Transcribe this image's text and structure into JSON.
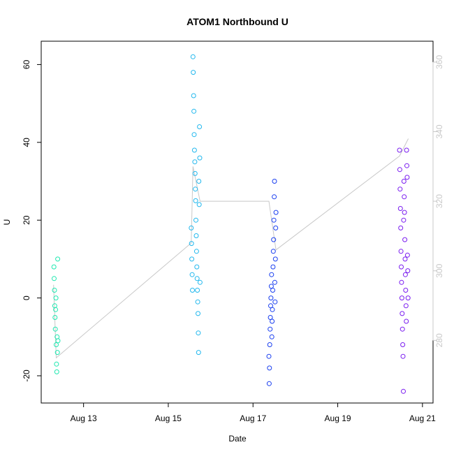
{
  "chart_data": {
    "type": "scatter",
    "title": "ATOM1 Northbound U",
    "xlabel": "Date",
    "ylabel": "U",
    "x_ticks": [
      "Aug 13",
      "Aug 15",
      "Aug 17",
      "Aug 19",
      "Aug 21"
    ],
    "xlim": [
      "Aug 12 00:00",
      "Aug 21 06:00"
    ],
    "ylim": [
      -27,
      66
    ],
    "y_ticks": [
      -20,
      0,
      20,
      40,
      60
    ],
    "y2_ticks": [
      280,
      300,
      320,
      340,
      360
    ],
    "y2lim": [
      262,
      366
    ],
    "grid": false,
    "colors": {
      "cluster_aug12": "#1ee8b0",
      "cluster_aug15": "#22b8ee",
      "cluster_aug17": "#1a3ff0",
      "cluster_aug20": "#7a1cf0",
      "secondary_line": "#c8c8c8",
      "right_axis": "#c8c8c8"
    },
    "series": [
      {
        "marker": "open-circle",
        "color": "#1ee8b0",
        "points": [
          [
            "Aug 12 07:12",
            8
          ],
          [
            "Aug 12 07:20",
            5
          ],
          [
            "Aug 12 07:30",
            2
          ],
          [
            "Aug 12 07:40",
            -2
          ],
          [
            "Aug 12 07:50",
            -5
          ],
          [
            "Aug 12 08:00",
            -8
          ],
          [
            "Aug 12 08:10",
            -3
          ],
          [
            "Aug 12 08:20",
            0
          ],
          [
            "Aug 12 08:30",
            -12
          ],
          [
            "Aug 12 08:40",
            -17
          ],
          [
            "Aug 12 08:50",
            -19
          ],
          [
            "Aug 12 09:00",
            -10
          ],
          [
            "Aug 12 09:10",
            -14
          ],
          [
            "Aug 12 09:20",
            10
          ],
          [
            "Aug 12 09:30",
            -11
          ]
        ]
      },
      {
        "marker": "open-circle",
        "color": "#22b8ee",
        "points": [
          [
            "Aug 15 14:00",
            62
          ],
          [
            "Aug 15 14:10",
            58
          ],
          [
            "Aug 15 14:20",
            52
          ],
          [
            "Aug 15 14:30",
            48
          ],
          [
            "Aug 15 14:40",
            42
          ],
          [
            "Aug 15 14:50",
            38
          ],
          [
            "Aug 15 15:00",
            35
          ],
          [
            "Aug 15 15:10",
            32
          ],
          [
            "Aug 15 15:20",
            28
          ],
          [
            "Aug 15 15:30",
            25
          ],
          [
            "Aug 15 15:40",
            20
          ],
          [
            "Aug 15 15:50",
            16
          ],
          [
            "Aug 15 16:00",
            12
          ],
          [
            "Aug 15 16:10",
            8
          ],
          [
            "Aug 15 16:20",
            5
          ],
          [
            "Aug 15 16:30",
            2
          ],
          [
            "Aug 15 16:40",
            -1
          ],
          [
            "Aug 15 16:50",
            -4
          ],
          [
            "Aug 15 17:00",
            -9
          ],
          [
            "Aug 15 17:10",
            -14
          ],
          [
            "Aug 15 13:00",
            18
          ],
          [
            "Aug 15 13:10",
            14
          ],
          [
            "Aug 15 13:20",
            10
          ],
          [
            "Aug 15 13:30",
            6
          ],
          [
            "Aug 15 13:40",
            2
          ],
          [
            "Aug 15 17:20",
            30
          ],
          [
            "Aug 15 17:30",
            24
          ],
          [
            "Aug 15 17:40",
            44
          ],
          [
            "Aug 15 17:50",
            36
          ],
          [
            "Aug 15 18:00",
            4
          ]
        ]
      },
      {
        "marker": "open-circle",
        "color": "#1a3ff0",
        "points": [
          [
            "Aug 17 09:00",
            -15
          ],
          [
            "Aug 17 09:10",
            -22
          ],
          [
            "Aug 17 09:20",
            -18
          ],
          [
            "Aug 17 09:30",
            -12
          ],
          [
            "Aug 17 09:40",
            -8
          ],
          [
            "Aug 17 09:50",
            -5
          ],
          [
            "Aug 17 10:00",
            -2
          ],
          [
            "Aug 17 10:10",
            0
          ],
          [
            "Aug 17 10:20",
            3
          ],
          [
            "Aug 17 10:30",
            6
          ],
          [
            "Aug 17 10:40",
            -10
          ],
          [
            "Aug 17 10:50",
            -6
          ],
          [
            "Aug 17 11:00",
            -3
          ],
          [
            "Aug 17 11:10",
            2
          ],
          [
            "Aug 17 11:20",
            8
          ],
          [
            "Aug 17 11:30",
            12
          ],
          [
            "Aug 17 11:40",
            15
          ],
          [
            "Aug 17 11:50",
            20
          ],
          [
            "Aug 17 12:00",
            26
          ],
          [
            "Aug 17 12:10",
            30
          ],
          [
            "Aug 17 12:20",
            4
          ],
          [
            "Aug 17 12:30",
            -1
          ],
          [
            "Aug 17 12:40",
            10
          ],
          [
            "Aug 17 12:50",
            18
          ],
          [
            "Aug 17 13:00",
            22
          ]
        ]
      },
      {
        "marker": "open-circle",
        "color": "#7a1cf0",
        "points": [
          [
            "Aug 20 11:00",
            38
          ],
          [
            "Aug 20 11:10",
            33
          ],
          [
            "Aug 20 11:20",
            28
          ],
          [
            "Aug 20 11:30",
            23
          ],
          [
            "Aug 20 11:40",
            18
          ],
          [
            "Aug 20 11:50",
            12
          ],
          [
            "Aug 20 12:00",
            8
          ],
          [
            "Aug 20 12:10",
            4
          ],
          [
            "Aug 20 12:20",
            0
          ],
          [
            "Aug 20 12:30",
            -4
          ],
          [
            "Aug 20 12:40",
            -8
          ],
          [
            "Aug 20 12:50",
            -12
          ],
          [
            "Aug 20 13:00",
            -15
          ],
          [
            "Aug 20 13:10",
            -24
          ],
          [
            "Aug 20 13:20",
            20
          ],
          [
            "Aug 20 13:30",
            30
          ],
          [
            "Aug 20 13:40",
            26
          ],
          [
            "Aug 20 13:50",
            22
          ],
          [
            "Aug 20 14:00",
            15
          ],
          [
            "Aug 20 14:10",
            10
          ],
          [
            "Aug 20 14:20",
            6
          ],
          [
            "Aug 20 14:30",
            2
          ],
          [
            "Aug 20 14:40",
            -2
          ],
          [
            "Aug 20 14:50",
            -6
          ],
          [
            "Aug 20 15:00",
            38
          ],
          [
            "Aug 20 15:10",
            34
          ],
          [
            "Aug 20 15:20",
            31
          ],
          [
            "Aug 20 15:30",
            11
          ],
          [
            "Aug 20 15:40",
            7
          ],
          [
            "Aug 20 15:50",
            0
          ]
        ]
      }
    ],
    "secondary_line": {
      "axis": "right",
      "color": "#c8c8c8",
      "points": [
        [
          "Aug 12 07:00",
          296
        ],
        [
          "Aug 12 08:30",
          275
        ],
        [
          "Aug 15 13:00",
          308
        ],
        [
          "Aug 15 14:00",
          330
        ],
        [
          "Aug 15 18:00",
          320
        ],
        [
          "Aug 17 09:00",
          320
        ],
        [
          "Aug 17 13:00",
          306
        ],
        [
          "Aug 20 11:00",
          333
        ],
        [
          "Aug 20 16:00",
          338
        ]
      ]
    }
  }
}
